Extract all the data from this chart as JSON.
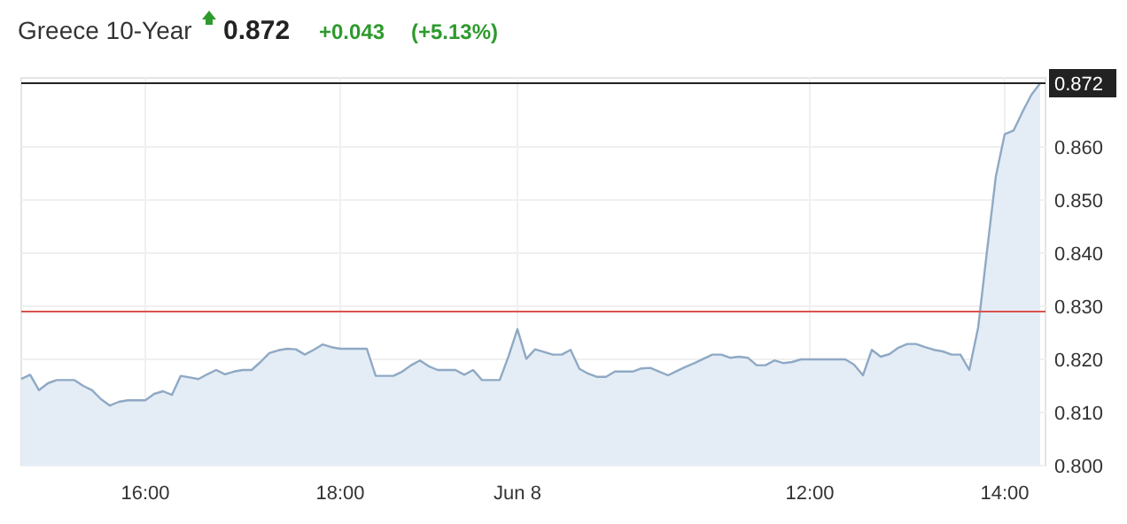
{
  "chart_data": {
    "type": "area",
    "title": "Greece 10-Year",
    "annotations": [
      "0.872",
      "+0.043",
      "(+5.13%)"
    ],
    "categories": [
      null,
      null,
      null,
      null,
      null,
      null,
      null,
      null,
      null,
      null,
      null,
      null,
      null,
      null,
      "16:00",
      null,
      null,
      null,
      null,
      null,
      null,
      null,
      null,
      null,
      null,
      null,
      null,
      null,
      null,
      null,
      null,
      null,
      null,
      null,
      null,
      null,
      "18:00",
      null,
      null,
      null,
      null,
      null,
      null,
      null,
      null,
      null,
      null,
      null,
      null,
      null,
      null,
      null,
      null,
      null,
      null,
      null,
      "Jun 8",
      null,
      null,
      null,
      null,
      null,
      null,
      null,
      null,
      null,
      null,
      null,
      null,
      null,
      null,
      null,
      null,
      null,
      null,
      null,
      null,
      null,
      null,
      null,
      null,
      null,
      null,
      null,
      null,
      null,
      null,
      null,
      null,
      "12:00",
      null,
      null,
      null,
      null,
      null,
      null,
      null,
      null,
      null,
      null,
      null,
      null,
      null,
      null,
      null,
      null,
      null,
      null,
      null,
      null,
      null,
      "14:00",
      null,
      null,
      null,
      null
    ],
    "series": [
      {
        "color": "#8fa9c4",
        "values": [
          0.8163,
          0.8171,
          0.8142,
          0.8155,
          0.8161,
          0.8161,
          0.8161,
          0.815,
          0.8142,
          0.8125,
          0.8113,
          0.812,
          0.8123,
          0.8123,
          0.8123,
          0.8135,
          0.814,
          0.8133,
          0.8169,
          0.8166,
          0.8163,
          0.8172,
          0.818,
          0.8172,
          0.8177,
          0.818,
          0.818,
          0.8195,
          0.8212,
          0.8217,
          0.822,
          0.8219,
          0.8209,
          0.8218,
          0.8228,
          0.8223,
          0.822,
          0.822,
          0.822,
          0.822,
          0.8169,
          0.8169,
          0.8169,
          0.8177,
          0.8189,
          0.8198,
          0.8187,
          0.818,
          0.818,
          0.818,
          0.8171,
          0.818,
          0.8161,
          0.8161,
          0.8161,
          0.8206,
          0.8257,
          0.8201,
          0.8219,
          0.8214,
          0.8209,
          0.8209,
          0.8218,
          0.8182,
          0.8173,
          0.8167,
          0.8167,
          0.8177,
          0.8177,
          0.8177,
          0.8183,
          0.8184,
          0.8177,
          0.817,
          0.8178,
          0.8186,
          0.8193,
          0.8201,
          0.8209,
          0.8209,
          0.8203,
          0.8205,
          0.8203,
          0.8189,
          0.8189,
          0.8198,
          0.8193,
          0.8195,
          0.82,
          0.82,
          0.82,
          0.82,
          0.82,
          0.82,
          0.819,
          0.817,
          0.8218,
          0.8205,
          0.821,
          0.8222,
          0.8229,
          0.8229,
          0.8223,
          0.8218,
          0.8215,
          0.8209,
          0.8209,
          0.818,
          0.826,
          0.8404,
          0.8545,
          0.8624,
          0.8631,
          0.8666,
          0.8698,
          0.872
        ]
      }
    ],
    "ylim": [
      0.8,
      0.873
    ],
    "yticks": [
      {
        "value": 0.8,
        "label": "0.800"
      },
      {
        "value": 0.81,
        "label": "0.810"
      },
      {
        "value": 0.82,
        "label": "0.820"
      },
      {
        "value": 0.83,
        "label": "0.830"
      },
      {
        "value": 0.84,
        "label": "0.840"
      },
      {
        "value": 0.85,
        "label": "0.850"
      },
      {
        "value": 0.86,
        "label": "0.860"
      }
    ],
    "ref_lines": [
      {
        "axis": "y",
        "value": 0.872,
        "label": "0.872",
        "color": "#222222"
      },
      {
        "axis": "y",
        "value": 0.829,
        "color": "#d9534f"
      }
    ],
    "grid": true
  }
}
